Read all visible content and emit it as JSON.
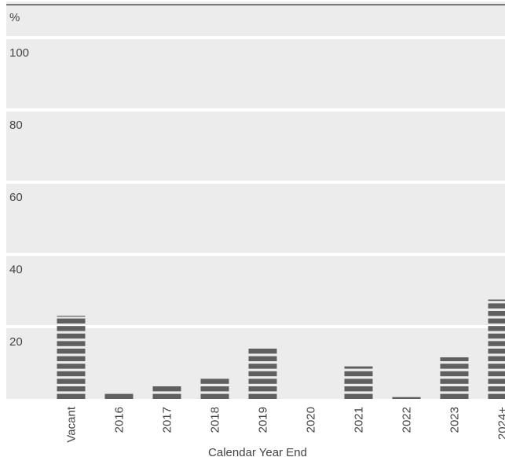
{
  "chart_data": {
    "type": "bar",
    "unit_label": "%",
    "xlabel": "Calendar Year End",
    "ylabel": "",
    "ylim": [
      0,
      110
    ],
    "yticks": [
      20,
      40,
      60,
      80,
      100
    ],
    "grid": "alternating bands",
    "categories": [
      "Vacant",
      "2016",
      "2017",
      "2018",
      "2019",
      "2020",
      "2021",
      "2022",
      "2023",
      "2024+"
    ],
    "values": [
      23,
      2,
      4,
      6,
      14,
      0,
      9,
      0.5,
      11.5,
      27.5
    ],
    "colors": {
      "bar": "#5f5f5f",
      "band": "#ececec",
      "top_rule": "#333333"
    }
  }
}
